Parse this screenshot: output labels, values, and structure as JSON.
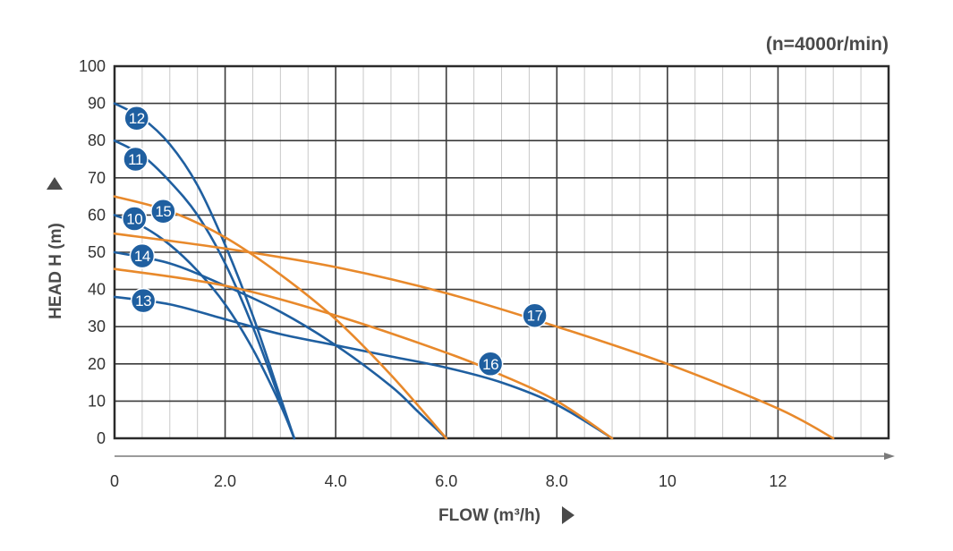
{
  "chart_data": {
    "type": "line",
    "title": "(n=4000r/min)",
    "xlabel": "FLOW (m³/h)",
    "ylabel": "HEAD H (m)",
    "xlim": [
      0,
      14
    ],
    "ylim": [
      0,
      100
    ],
    "x_ticks": [
      {
        "value": 0,
        "label": "0"
      },
      {
        "value": 2,
        "label": "2.0"
      },
      {
        "value": 4,
        "label": "4.0"
      },
      {
        "value": 6,
        "label": "6.0"
      },
      {
        "value": 8,
        "label": "8.0"
      },
      {
        "value": 10,
        "label": "10"
      },
      {
        "value": 12,
        "label": "12"
      }
    ],
    "y_ticks": [
      {
        "value": 0,
        "label": "0"
      },
      {
        "value": 10,
        "label": "10"
      },
      {
        "value": 20,
        "label": "20"
      },
      {
        "value": 30,
        "label": "30"
      },
      {
        "value": 40,
        "label": "40"
      },
      {
        "value": 50,
        "label": "50"
      },
      {
        "value": 60,
        "label": "60"
      },
      {
        "value": 70,
        "label": "70"
      },
      {
        "value": 80,
        "label": "80"
      },
      {
        "value": 90,
        "label": "90"
      },
      {
        "value": 100,
        "label": "100"
      }
    ],
    "grid": true,
    "colors": {
      "blue": "#1f5fa0",
      "orange": "#e8892b",
      "grid_major": "#3a3a3a",
      "grid_minor": "#c8c8c8"
    },
    "series": [
      {
        "name": "12",
        "color": "#1f5fa0",
        "x": [
          0,
          0.5,
          1.0,
          1.5,
          2.0,
          2.5,
          3.0,
          3.25
        ],
        "y": [
          90,
          86,
          79,
          68,
          52,
          33,
          11,
          0
        ],
        "label_at": [
          0.4,
          86
        ]
      },
      {
        "name": "11",
        "color": "#1f5fa0",
        "x": [
          0,
          0.5,
          1.0,
          1.5,
          2.0,
          2.5,
          3.0,
          3.25
        ],
        "y": [
          80,
          76,
          69,
          60,
          47,
          30,
          10,
          0
        ],
        "label_at": [
          0.38,
          75
        ]
      },
      {
        "name": "10",
        "color": "#1f5fa0",
        "x": [
          0,
          0.5,
          1.0,
          1.5,
          2.0,
          2.5,
          3.0,
          3.25
        ],
        "y": [
          60,
          57,
          52,
          45,
          36,
          24,
          9,
          0
        ],
        "label_at": [
          0.36,
          59
        ]
      },
      {
        "name": "14",
        "color": "#1f5fa0",
        "x": [
          0,
          1.0,
          2.0,
          3.0,
          4.0,
          5.0,
          5.5,
          6.0
        ],
        "y": [
          50,
          47,
          41,
          34,
          25,
          14,
          7,
          0
        ],
        "label_at": [
          0.5,
          49
        ]
      },
      {
        "name": "13",
        "color": "#1f5fa0",
        "x": [
          0,
          1.0,
          2.0,
          3.0,
          4.0,
          5.0,
          6.0,
          7.0,
          8.0,
          9.0
        ],
        "y": [
          38,
          36,
          32,
          28,
          25,
          22,
          19,
          15,
          9,
          0
        ],
        "label_at": [
          0.52,
          37
        ]
      },
      {
        "name": "15",
        "color": "#e8892b",
        "x": [
          0,
          1.0,
          2.0,
          3.0,
          4.0,
          5.0,
          6.0
        ],
        "y": [
          65,
          61,
          54,
          44,
          32,
          17,
          0
        ],
        "label_at": [
          0.88,
          61
        ]
      },
      {
        "name": "16",
        "color": "#e8892b",
        "x": [
          0,
          2.0,
          4.0,
          6.0,
          7.0,
          8.0,
          9.0
        ],
        "y": [
          45.5,
          41,
          33,
          23,
          17,
          10,
          0
        ],
        "label_at": [
          6.8,
          20
        ]
      },
      {
        "name": "17",
        "color": "#e8892b",
        "x": [
          0,
          2.0,
          4.0,
          6.0,
          8.0,
          10.0,
          12.0,
          13.0
        ],
        "y": [
          55,
          51,
          46,
          39,
          30,
          20,
          8,
          0
        ],
        "label_at": [
          7.6,
          33
        ]
      }
    ]
  }
}
